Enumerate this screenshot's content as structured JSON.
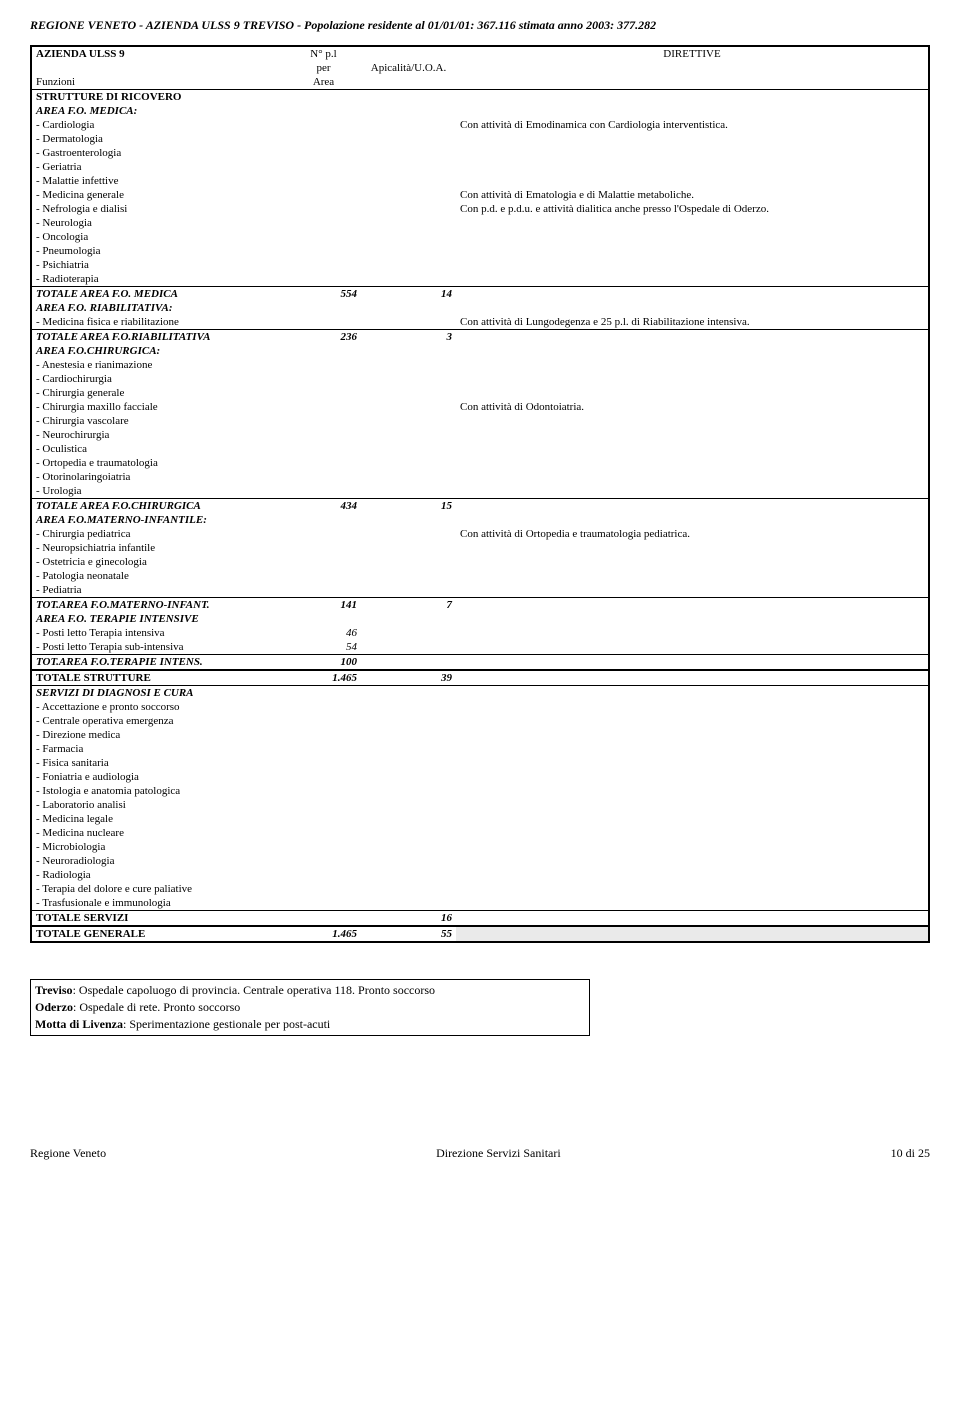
{
  "page_title": "REGIONE VENETO - AZIENDA ULSS  9 TREVISO - Popolazione residente al 01/01/01: 367.116 stimata anno 2003: 377.282",
  "box_title": "AZIENDA ULSS 9",
  "columns": {
    "funzioni": "Funzioni",
    "npl_per_area_line1": "N° p.l",
    "npl_per_area_line2": "per",
    "npl_per_area_line3": "Area",
    "apicalita": "Apicalità/U.O.A.",
    "direttive": "DIRETTIVE"
  },
  "sections": [
    {
      "title": "STRUTTURE DI RICOVERO",
      "areas": [
        {
          "label": "AREA F.O. MEDICA:",
          "items": [
            {
              "name": "- Cardiologia",
              "dir": "Con attività di Emodinamica con Cardiologia interventistica."
            },
            {
              "name": "- Dermatologia"
            },
            {
              "name": "- Gastroenterologia"
            },
            {
              "name": "- Geriatria"
            },
            {
              "name": "- Malattie infettive"
            },
            {
              "name": "- Medicina generale",
              "dir": "Con attività di Ematologia e di Malattie metaboliche."
            },
            {
              "name": "- Nefrologia e dialisi",
              "dir": "Con p.d. e p.d.u. e attività dialitica anche presso l'Ospedale di Oderzo."
            },
            {
              "name": "- Neurologia"
            },
            {
              "name": "- Oncologia"
            },
            {
              "name": "- Pneumologia"
            },
            {
              "name": "- Psichiatria"
            },
            {
              "name": "- Radioterapia"
            }
          ],
          "total": {
            "label": "TOTALE AREA F.O. MEDICA",
            "npl": "554",
            "apical": "14"
          }
        },
        {
          "label": "AREA F.O. RIABILITATIVA:",
          "items": [
            {
              "name": "- Medicina fisica e riabilitazione",
              "dir": "Con attività di Lungodegenza e 25 p.l. di Riabilitazione intensiva."
            }
          ],
          "total": {
            "label": "TOTALE AREA F.O.RIABILITATIVA",
            "npl": "236",
            "apical": "3"
          }
        },
        {
          "label": "AREA F.O.CHIRURGICA:",
          "items": [
            {
              "name": "- Anestesia e rianimazione"
            },
            {
              "name": "- Cardiochirurgia"
            },
            {
              "name": "- Chirurgia generale"
            },
            {
              "name": "- Chirurgia maxillo facciale",
              "dir": "Con attività di Odontoiatria."
            },
            {
              "name": "- Chirurgia vascolare"
            },
            {
              "name": "- Neurochirurgia"
            },
            {
              "name": "- Oculistica"
            },
            {
              "name": "- Ortopedia e traumatologia"
            },
            {
              "name": "- Otorinolaringoiatria"
            },
            {
              "name": "- Urologia"
            }
          ],
          "total": {
            "label": "TOTALE AREA F.O.CHIRURGICA",
            "npl": "434",
            "apical": "15"
          }
        },
        {
          "label": "AREA F.O.MATERNO-INFANTILE:",
          "items": [
            {
              "name": "- Chirurgia pediatrica",
              "dir": "Con attività di Ortopedia e traumatologia pediatrica."
            },
            {
              "name": "- Neuropsichiatria infantile"
            },
            {
              "name": "- Ostetricia e ginecologia"
            },
            {
              "name": "- Patologia neonatale"
            },
            {
              "name": "- Pediatria"
            }
          ],
          "total": {
            "label": "TOT.AREA F.O.MATERNO-INFANT.",
            "npl": "141",
            "apical": "7"
          }
        },
        {
          "label": "AREA F.O. TERAPIE INTENSIVE",
          "items": [
            {
              "name": "- Posti letto Terapia intensiva",
              "npl": "46"
            },
            {
              "name": "- Posti letto Terapia sub-intensiva",
              "npl": "54"
            }
          ],
          "total": {
            "label": "TOT.AREA F.O.TERAPIE INTENS.",
            "npl": "100",
            "apical": ""
          }
        }
      ],
      "strutture_total": {
        "label": "TOTALE STRUTTURE",
        "npl": "1.465",
        "apical": "39"
      }
    },
    {
      "title": "SERVIZI DI DIAGNOSI E CURA",
      "service_items": [
        "- Accettazione e pronto soccorso",
        "- Centrale operativa emergenza",
        "- Direzione medica",
        "- Farmacia",
        "- Fisica sanitaria",
        "- Foniatria e audiologia",
        "- Istologia e anatomia patologica",
        "- Laboratorio analisi",
        "- Medicina legale",
        "- Medicina nucleare",
        "- Microbiologia",
        "- Neuroradiologia",
        "- Radiologia",
        "- Terapia del dolore e cure paliative",
        "- Trasfusionale e immunologia"
      ]
    }
  ],
  "totale_servizi": {
    "label": "TOTALE SERVIZI",
    "apical": "16"
  },
  "totale_generale": {
    "label": "TOTALE GENERALE",
    "npl": "1.465",
    "apical": "55"
  },
  "notes": [
    {
      "bold": "Treviso",
      "rest": ": Ospedale capoluogo di provincia. Centrale operativa 118. Pronto soccorso"
    },
    {
      "bold": "Oderzo",
      "rest": ": Ospedale di rete. Pronto soccorso"
    },
    {
      "bold": "Motta di Livenza",
      "rest": ": Sperimentazione gestionale per post-acuti"
    }
  ],
  "footer": {
    "left": "Regione Veneto",
    "center": "Direzione Servizi Sanitari",
    "right": "10 di 25"
  }
}
